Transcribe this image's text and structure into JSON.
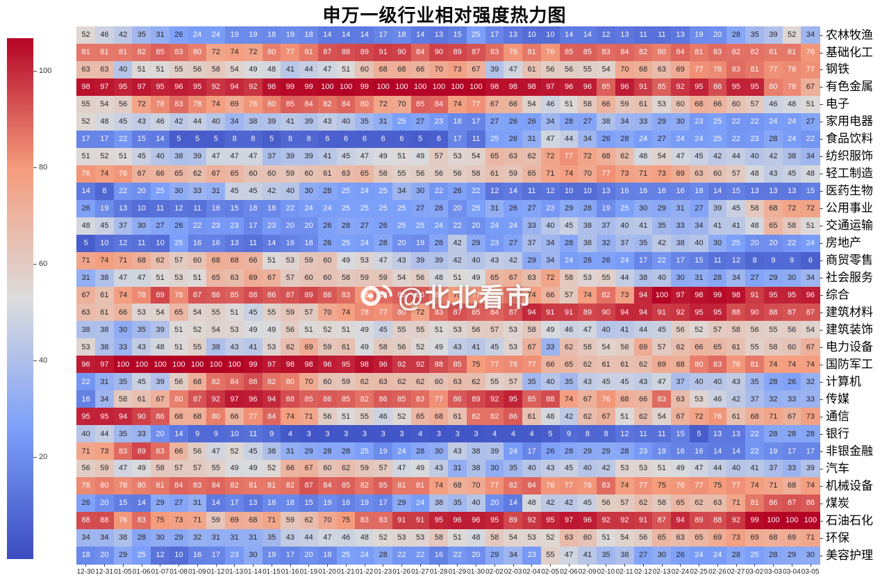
{
  "title": "申万一级行业相对强度热力图",
  "watermark": {
    "icon": "weibo-icon",
    "text": "@北北看市"
  },
  "colorbar": {
    "min": 0,
    "max": 100,
    "ticks": [
      20,
      40,
      60,
      80,
      100
    ],
    "colormap": "coolwarm",
    "position": "left"
  },
  "chart_data": {
    "type": "heatmap",
    "title": "申万一级行业相对强度热力图",
    "value_range": [
      0,
      100
    ],
    "colormap": "coolwarm",
    "legend_position": "left-colorbar",
    "x_labels": [
      "12-30",
      "12-31",
      "01-05",
      "01-06",
      "01-07",
      "01-08",
      "01-09",
      "01-12",
      "01-13",
      "01-14",
      "01-15",
      "01-16",
      "01-19",
      "01-20",
      "01-21",
      "01-22",
      "01-23",
      "01-26",
      "01-27",
      "01-28",
      "01-29",
      "01-30",
      "02-02",
      "02-03",
      "02-04",
      "02-05",
      "02-06",
      "02-09",
      "02-10",
      "02-11",
      "02-12",
      "02-13",
      "02-24",
      "02-25",
      "02-26",
      "02-27",
      "03-02",
      "03-03",
      "03-04",
      "03-05"
    ],
    "y_labels": [
      "农林牧渔",
      "基础化工",
      "钢铁",
      "有色金属",
      "电子",
      "家用电器",
      "食品饮料",
      "纺织服饰",
      "轻工制造",
      "医药生物",
      "公用事业",
      "交通运输",
      "房地产",
      "商贸零售",
      "社会服务",
      "综合",
      "建筑材料",
      "建筑装饰",
      "电力设备",
      "国防军工",
      "计算机",
      "传媒",
      "通信",
      "银行",
      "非银金融",
      "汽车",
      "机械设备",
      "煤炭",
      "石油石化",
      "环保",
      "美容护理"
    ],
    "values": [
      [
        52,
        46,
        42,
        35,
        31,
        26,
        24,
        24,
        19,
        19,
        18,
        19,
        18,
        14,
        14,
        14,
        17,
        18,
        14,
        13,
        15,
        25,
        17,
        13,
        10,
        10,
        14,
        14,
        12,
        13,
        11,
        11,
        13,
        19,
        20,
        28,
        35,
        39,
        52,
        34
      ],
      [
        81,
        81,
        81,
        82,
        85,
        83,
        80,
        72,
        74,
        72,
        80,
        77,
        81,
        87,
        88,
        89,
        91,
        90,
        84,
        90,
        89,
        87,
        83,
        76,
        81,
        76,
        85,
        85,
        83,
        84,
        82,
        80,
        84,
        81,
        83,
        82,
        82,
        81,
        81,
        76
      ],
      [
        63,
        63,
        40,
        51,
        51,
        55,
        56,
        58,
        54,
        49,
        48,
        41,
        44,
        47,
        51,
        60,
        68,
        68,
        66,
        70,
        73,
        67,
        39,
        47,
        61,
        56,
        56,
        55,
        54,
        70,
        68,
        63,
        69,
        77,
        78,
        83,
        81,
        77,
        78,
        77
      ],
      [
        98,
        97,
        95,
        97,
        95,
        96,
        95,
        92,
        94,
        92,
        98,
        99,
        99,
        100,
        100,
        99,
        100,
        100,
        100,
        100,
        100,
        100,
        98,
        98,
        98,
        97,
        96,
        96,
        85,
        96,
        91,
        85,
        92,
        95,
        88,
        95,
        95,
        80,
        78,
        67
      ],
      [
        55,
        54,
        56,
        72,
        78,
        83,
        78,
        74,
        69,
        76,
        80,
        85,
        84,
        82,
        84,
        80,
        72,
        70,
        85,
        84,
        74,
        77,
        67,
        66,
        54,
        46,
        51,
        58,
        66,
        59,
        61,
        53,
        60,
        68,
        66,
        60,
        57,
        46,
        48,
        51
      ],
      [
        52,
        48,
        45,
        43,
        46,
        42,
        44,
        40,
        34,
        38,
        39,
        41,
        39,
        43,
        40,
        35,
        31,
        25,
        27,
        23,
        18,
        17,
        27,
        26,
        26,
        34,
        28,
        27,
        38,
        34,
        33,
        29,
        30,
        23,
        25,
        22,
        22,
        24,
        24,
        27
      ],
      [
        17,
        17,
        22,
        15,
        14,
        5,
        5,
        5,
        8,
        8,
        5,
        8,
        8,
        6,
        6,
        6,
        6,
        6,
        5,
        6,
        17,
        11,
        25,
        26,
        31,
        47,
        44,
        34,
        26,
        28,
        24,
        27,
        24,
        24,
        25,
        22,
        23,
        28,
        24,
        22
      ],
      [
        51,
        52,
        51,
        45,
        40,
        38,
        39,
        47,
        47,
        47,
        37,
        39,
        39,
        41,
        45,
        47,
        49,
        51,
        49,
        57,
        53,
        54,
        65,
        63,
        62,
        72,
        77,
        72,
        68,
        62,
        48,
        54,
        47,
        45,
        42,
        44,
        40,
        42,
        38,
        34
      ],
      [
        76,
        74,
        76,
        67,
        66,
        65,
        62,
        67,
        65,
        60,
        60,
        59,
        60,
        61,
        63,
        65,
        58,
        55,
        56,
        56,
        56,
        58,
        61,
        59,
        65,
        71,
        74,
        70,
        77,
        73,
        71,
        73,
        69,
        63,
        60,
        57,
        48,
        43,
        45,
        48
      ],
      [
        14,
        8,
        22,
        20,
        25,
        30,
        33,
        31,
        45,
        45,
        42,
        40,
        30,
        28,
        25,
        24,
        25,
        34,
        30,
        22,
        26,
        22,
        12,
        14,
        11,
        12,
        10,
        10,
        13,
        16,
        16,
        16,
        16,
        18,
        14,
        15,
        13,
        13,
        13,
        15
      ],
      [
        26,
        19,
        13,
        10,
        11,
        12,
        11,
        16,
        15,
        18,
        18,
        22,
        24,
        24,
        25,
        25,
        25,
        25,
        27,
        28,
        20,
        25,
        31,
        26,
        27,
        23,
        29,
        28,
        19,
        25,
        30,
        29,
        31,
        27,
        39,
        45,
        58,
        68,
        72,
        72
      ],
      [
        48,
        45,
        37,
        30,
        27,
        26,
        22,
        23,
        23,
        17,
        23,
        20,
        20,
        26,
        28,
        27,
        26,
        25,
        25,
        24,
        22,
        20,
        24,
        24,
        33,
        40,
        45,
        38,
        37,
        40,
        41,
        35,
        33,
        34,
        41,
        41,
        48,
        65,
        58,
        51
      ],
      [
        5,
        10,
        12,
        11,
        10,
        25,
        16,
        16,
        13,
        11,
        14,
        16,
        18,
        26,
        25,
        24,
        28,
        20,
        19,
        28,
        42,
        29,
        23,
        27,
        37,
        34,
        28,
        38,
        32,
        37,
        35,
        42,
        38,
        40,
        30,
        25,
        20,
        20,
        22,
        24
      ],
      [
        71,
        74,
        71,
        68,
        62,
        57,
        60,
        68,
        68,
        66,
        51,
        53,
        59,
        60,
        49,
        53,
        47,
        43,
        39,
        39,
        42,
        40,
        43,
        42,
        29,
        34,
        24,
        26,
        26,
        24,
        17,
        22,
        17,
        15,
        11,
        12,
        8,
        9,
        9,
        6
      ],
      [
        31,
        38,
        47,
        47,
        51,
        53,
        51,
        65,
        63,
        69,
        67,
        57,
        60,
        60,
        58,
        59,
        59,
        54,
        56,
        48,
        51,
        49,
        65,
        67,
        63,
        72,
        58,
        53,
        55,
        44,
        38,
        40,
        30,
        31,
        28,
        34,
        27,
        29,
        30,
        34
      ],
      [
        67,
        61,
        74,
        78,
        89,
        78,
        87,
        86,
        85,
        88,
        86,
        87,
        89,
        86,
        83,
        76,
        83,
        85,
        86,
        80,
        75,
        77,
        77,
        82,
        74,
        66,
        57,
        74,
        82,
        73,
        94,
        100,
        97,
        98,
        99,
        98,
        91,
        95,
        95,
        96
      ],
      [
        63,
        61,
        66,
        53,
        54,
        65,
        54,
        55,
        51,
        45,
        55,
        59,
        57,
        70,
        74,
        78,
        77,
        80,
        72,
        83,
        87,
        85,
        84,
        87,
        94,
        91,
        91,
        89,
        90,
        94,
        94,
        91,
        92,
        95,
        95,
        88,
        90,
        88,
        87,
        87
      ],
      [
        38,
        38,
        30,
        35,
        39,
        51,
        52,
        54,
        53,
        49,
        49,
        56,
        51,
        52,
        51,
        49,
        45,
        55,
        55,
        51,
        53,
        56,
        57,
        53,
        58,
        49,
        46,
        47,
        40,
        41,
        44,
        45,
        56,
        52,
        57,
        58,
        56,
        55,
        56,
        54
      ],
      [
        53,
        38,
        33,
        43,
        48,
        51,
        55,
        38,
        43,
        41,
        53,
        62,
        69,
        59,
        61,
        49,
        58,
        56,
        52,
        49,
        43,
        41,
        45,
        53,
        67,
        33,
        62,
        58,
        54,
        56,
        69,
        57,
        62,
        66,
        65,
        61,
        55,
        58,
        60,
        67
      ],
      [
        96,
        97,
        100,
        100,
        100,
        100,
        100,
        100,
        100,
        99,
        97,
        98,
        98,
        96,
        95,
        98,
        96,
        92,
        92,
        88,
        85,
        75,
        77,
        78,
        77,
        66,
        65,
        62,
        61,
        61,
        62,
        69,
        68,
        80,
        83,
        76,
        81,
        74,
        74,
        74
      ],
      [
        22,
        31,
        35,
        45,
        39,
        56,
        68,
        82,
        84,
        88,
        82,
        80,
        70,
        60,
        59,
        62,
        63,
        62,
        62,
        60,
        63,
        62,
        55,
        57,
        35,
        40,
        35,
        43,
        45,
        45,
        43,
        47,
        37,
        40,
        40,
        43,
        35,
        28,
        26,
        32
      ],
      [
        16,
        34,
        58,
        61,
        67,
        80,
        87,
        92,
        97,
        96,
        94,
        88,
        85,
        86,
        85,
        82,
        86,
        85,
        83,
        77,
        86,
        89,
        92,
        95,
        85,
        88,
        74,
        67,
        76,
        68,
        66,
        83,
        63,
        53,
        46,
        42,
        37,
        32,
        33,
        33
      ],
      [
        95,
        95,
        94,
        90,
        86,
        68,
        68,
        80,
        66,
        77,
        84,
        74,
        71,
        56,
        51,
        55,
        46,
        52,
        65,
        68,
        61,
        82,
        82,
        86,
        61,
        48,
        42,
        62,
        67,
        51,
        62,
        54,
        67,
        72,
        76,
        61,
        68,
        71,
        67,
        73
      ],
      [
        40,
        44,
        35,
        33,
        20,
        14,
        9,
        9,
        10,
        11,
        9,
        4,
        3,
        3,
        3,
        3,
        3,
        3,
        4,
        3,
        3,
        3,
        4,
        4,
        4,
        5,
        9,
        8,
        8,
        12,
        11,
        11,
        15,
        5,
        13,
        13,
        22,
        28,
        28,
        28
      ],
      [
        71,
        73,
        83,
        89,
        83,
        66,
        56,
        47,
        52,
        45,
        38,
        31,
        29,
        28,
        28,
        25,
        19,
        24,
        28,
        30,
        43,
        38,
        39,
        24,
        17,
        26,
        28,
        29,
        29,
        28,
        23,
        19,
        16,
        16,
        14,
        14,
        22,
        19,
        17,
        17
      ],
      [
        56,
        59,
        47,
        49,
        58,
        57,
        57,
        55,
        49,
        49,
        52,
        66,
        67,
        60,
        62,
        59,
        57,
        47,
        49,
        43,
        31,
        38,
        30,
        35,
        40,
        43,
        45,
        40,
        42,
        53,
        53,
        51,
        49,
        47,
        44,
        40,
        41,
        37,
        33,
        39
      ],
      [
        78,
        80,
        78,
        80,
        81,
        84,
        83,
        84,
        82,
        81,
        81,
        82,
        87,
        84,
        85,
        82,
        85,
        81,
        81,
        74,
        68,
        70,
        77,
        82,
        84,
        76,
        77,
        76,
        83,
        74,
        77,
        75,
        76,
        77,
        75,
        77,
        74,
        71,
        68,
        74
      ],
      [
        26,
        20,
        15,
        14,
        29,
        27,
        31,
        14,
        17,
        13,
        18,
        18,
        15,
        19,
        16,
        19,
        17,
        29,
        24,
        38,
        35,
        40,
        20,
        14,
        48,
        42,
        42,
        45,
        56,
        57,
        62,
        58,
        65,
        62,
        63,
        71,
        81,
        86,
        87,
        86
      ],
      [
        88,
        88,
        76,
        83,
        75,
        73,
        71,
        59,
        69,
        68,
        71,
        59,
        62,
        70,
        75,
        83,
        83,
        91,
        91,
        95,
        96,
        96,
        95,
        89,
        92,
        95,
        97,
        96,
        92,
        92,
        91,
        87,
        94,
        89,
        88,
        92,
        99,
        100,
        100,
        100
      ],
      [
        34,
        34,
        38,
        28,
        30,
        29,
        32,
        31,
        31,
        31,
        35,
        43,
        44,
        47,
        46,
        48,
        52,
        53,
        53,
        58,
        51,
        48,
        58,
        54,
        53,
        52,
        63,
        60,
        51,
        54,
        56,
        65,
        63,
        65,
        69,
        73,
        69,
        68,
        69,
        71
      ],
      [
        18,
        20,
        29,
        25,
        12,
        10,
        16,
        17,
        23,
        30,
        19,
        17,
        20,
        18,
        25,
        24,
        28,
        22,
        22,
        16,
        22,
        20,
        29,
        34,
        23,
        55,
        47,
        41,
        35,
        38,
        27,
        30,
        26,
        24,
        24,
        28,
        25,
        28,
        29,
        30
      ]
    ]
  }
}
